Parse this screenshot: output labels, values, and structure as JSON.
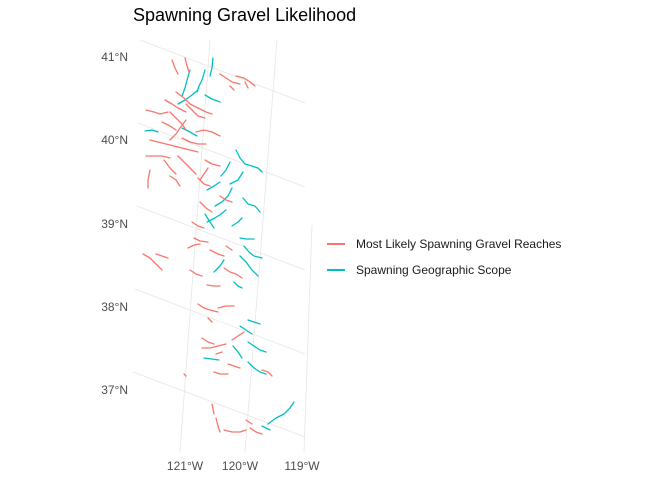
{
  "title": "Spawning Gravel Likelihood",
  "colors": {
    "likely": "#F8766D",
    "scope": "#00BFC4",
    "grid": "#e6e6e6",
    "axis_text": "#4d4d4d"
  },
  "lat_labels": [
    "41°N",
    "40°N",
    "39°N",
    "38°N",
    "37°N"
  ],
  "lon_labels": [
    "121°W",
    "120°W",
    "119°W"
  ],
  "legend": [
    {
      "label": "Most Likely Spawning Gravel Reaches",
      "color_key": "likely"
    },
    {
      "label": "Spawning Geographic Scope",
      "color_key": "scope"
    }
  ]
}
